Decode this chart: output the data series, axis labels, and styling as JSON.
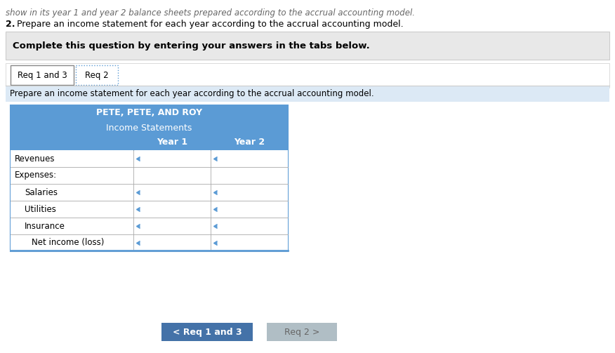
{
  "bg_color": "#ffffff",
  "top_text_line1": "show in its year 1 and year 2 balance sheets prepared according to the accrual accounting model.",
  "top_text_line2_bold": "2.",
  "top_text_line2_rest": " Prepare an income statement for each year according to the accrual accounting model.",
  "complete_box_text": "Complete this question by entering your answers in the tabs below.",
  "tab1_label": "Req 1 and 3",
  "tab2_label": "Req 2",
  "instruction_text": "Prepare an income statement for each year according to the accrual accounting model.",
  "instruction_bg": "#dce9f5",
  "table_header_bg": "#5b9bd5",
  "table_header_text_color": "#ffffff",
  "table_title1": "PETE, PETE, AND ROY",
  "table_title2": "Income Statements",
  "col_year1": "Year 1",
  "col_year2": "Year 2",
  "row_labels": [
    "Revenues",
    "Expenses:",
    "  Salaries",
    "  Utilities",
    "  Insurance",
    "    Net income (loss)"
  ],
  "table_border_color": "#5b9bd5",
  "input_marker_color": "#5b9bd5",
  "btn1_label": "< Req 1 and 3",
  "btn2_label": "Req 2 >",
  "btn1_bg": "#4472a8",
  "btn2_bg": "#b0bec5",
  "btn_text_color": "#ffffff",
  "tab_dotted_color": "#5b9bd5"
}
